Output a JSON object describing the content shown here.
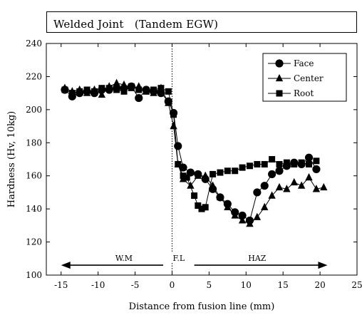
{
  "chart_data": {
    "type": "scatter",
    "title": "Welded Joint　(Tandem EGW)",
    "xlabel": "Distance from fusion line (mm)",
    "ylabel": "Hardness (Hv, 10kg)",
    "xlim": [
      -17,
      25
    ],
    "ylim": [
      100,
      240
    ],
    "xticks": [
      -15,
      -10,
      -5,
      0,
      5,
      10,
      15,
      20,
      25
    ],
    "yticks": [
      100,
      120,
      140,
      160,
      180,
      200,
      220,
      240
    ],
    "grid": false,
    "legend_position": "top-right",
    "fusion_line_x": 0,
    "regions": {
      "arrow_y": 106,
      "arrow_from": -15,
      "arrow_to": 21,
      "labels": [
        {
          "text": "W.M",
          "x": -6.5
        },
        {
          "text": "F.L",
          "x": 0.9
        },
        {
          "text": "HAZ",
          "x": 11.5
        }
      ]
    },
    "series": [
      {
        "name": "Face",
        "marker": "circle",
        "x": [
          -14.5,
          -13.5,
          -12.5,
          -11.5,
          -10.5,
          -9.5,
          -8.5,
          -7.5,
          -6.5,
          -5.5,
          -4.5,
          -3.5,
          -2.5,
          -1.5,
          -0.5,
          0.2,
          0.8,
          1.5,
          2.5,
          3.5,
          4.5,
          5.5,
          6.5,
          7.5,
          8.5,
          9.5,
          10.5,
          11.5,
          12.5,
          13.5,
          14.5,
          15.5,
          16.5,
          17.5,
          18.5,
          19.5
        ],
        "values": [
          212,
          208,
          210,
          211,
          210,
          212,
          212,
          213,
          213,
          214,
          207,
          212,
          211,
          210,
          205,
          198,
          178,
          165,
          162,
          161,
          158,
          152,
          147,
          143,
          138,
          136,
          133,
          150,
          154,
          161,
          163,
          166,
          168,
          167,
          171,
          164
        ]
      },
      {
        "name": "Center",
        "marker": "triangle",
        "x": [
          -14.5,
          -13.5,
          -12.5,
          -11.5,
          -10.5,
          -9.5,
          -8.5,
          -7.5,
          -6.5,
          -5.5,
          -4.5,
          -3.5,
          -2.5,
          -1.5,
          -0.5,
          0.2,
          0.8,
          1.5,
          2.5,
          3.5,
          4.5,
          5.5,
          6.5,
          7.5,
          8.5,
          9.5,
          10.5,
          11.5,
          12.5,
          13.5,
          14.5,
          15.5,
          16.5,
          17.5,
          18.5,
          19.5,
          20.5
        ],
        "values": [
          213,
          211,
          212,
          210,
          212,
          209,
          214,
          216,
          215,
          213,
          214,
          211,
          210,
          213,
          204,
          190,
          167,
          158,
          154,
          160,
          160,
          154,
          147,
          141,
          136,
          133,
          131,
          135,
          141,
          148,
          153,
          152,
          156,
          154,
          159,
          152,
          153
        ]
      },
      {
        "name": "Root",
        "marker": "square",
        "x": [
          -14.5,
          -13.5,
          -12.5,
          -11.5,
          -10.5,
          -9.5,
          -8.5,
          -7.5,
          -6.5,
          -5.5,
          -4.5,
          -3.5,
          -2.5,
          -1.5,
          -0.5,
          0.2,
          0.8,
          1.5,
          2.0,
          3.0,
          3.5,
          4.0,
          4.5,
          5.5,
          6.5,
          7.5,
          8.5,
          9.5,
          10.5,
          11.5,
          12.5,
          13.5,
          14.5,
          15.5,
          16.5,
          17.5,
          18.5,
          19.5
        ],
        "values": [
          212,
          210,
          211,
          212,
          211,
          213,
          213,
          212,
          211,
          214,
          212,
          211,
          212,
          213,
          211,
          197,
          167,
          160,
          159,
          148,
          142,
          140,
          141,
          161,
          162,
          163,
          163,
          165,
          166,
          167,
          167,
          170,
          167,
          168,
          167,
          168,
          167,
          169
        ]
      }
    ]
  }
}
